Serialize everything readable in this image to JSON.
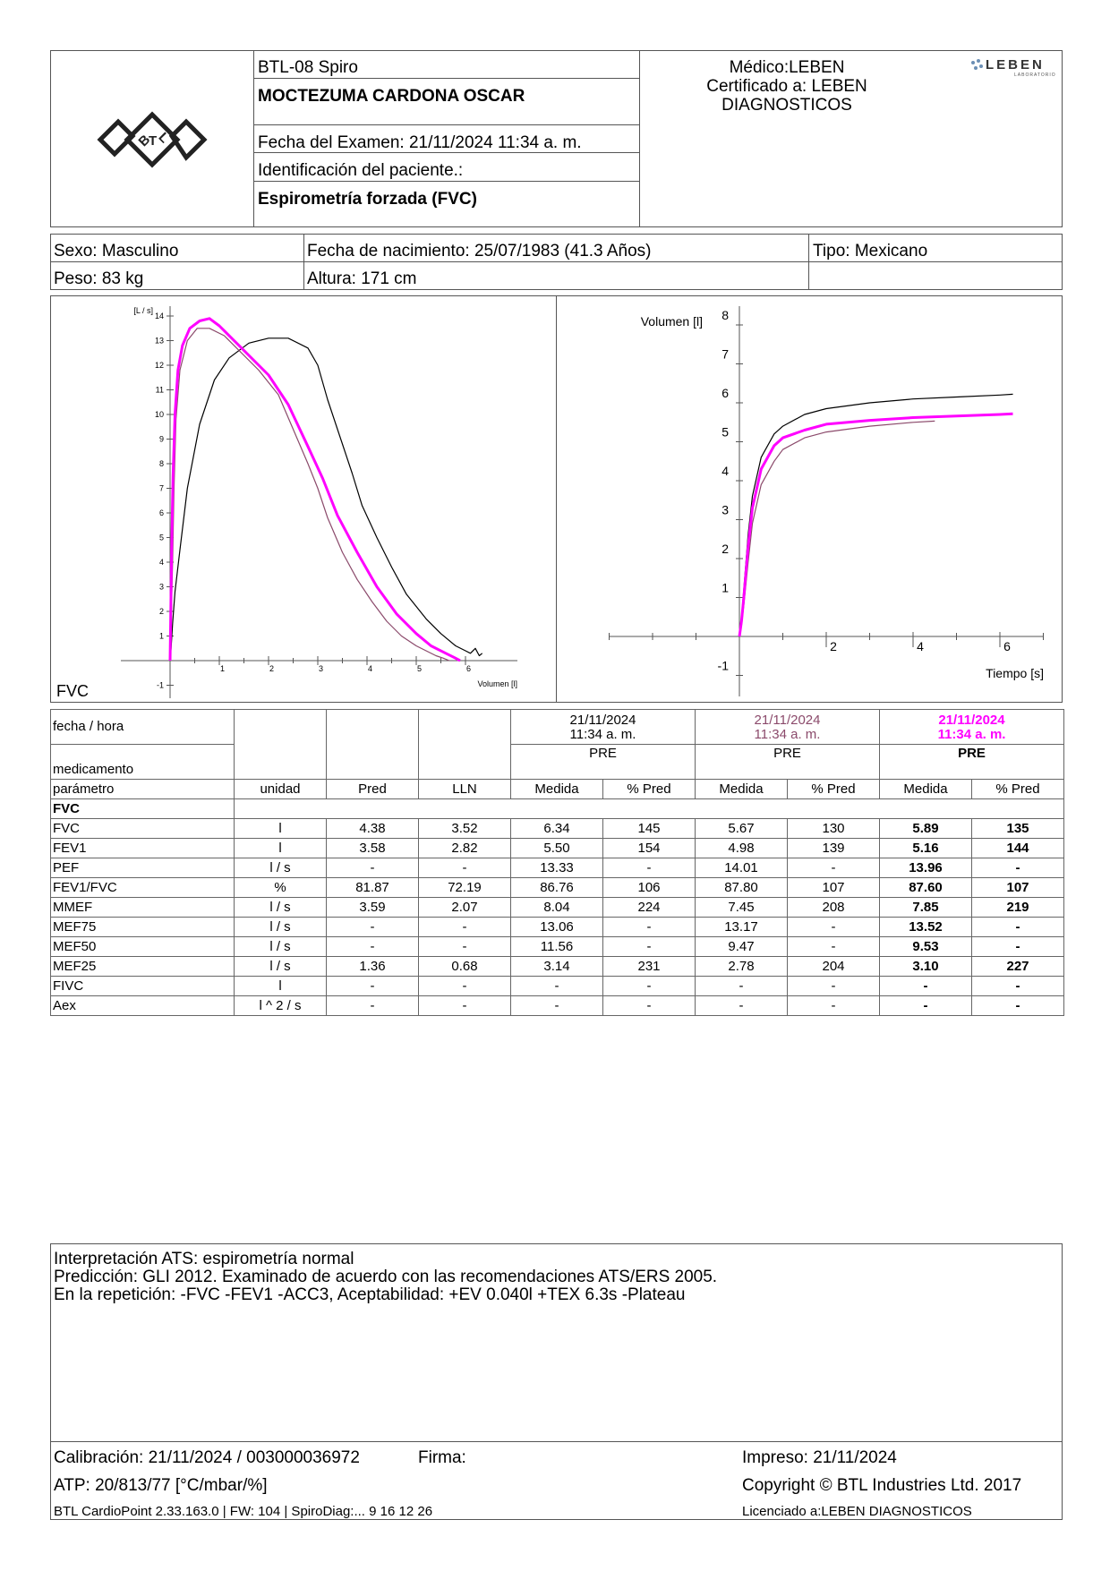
{
  "header": {
    "device": "BTL-08 Spiro",
    "patient_name": "MOCTEZUMA CARDONA OSCAR",
    "exam_date": "Fecha del Examen:  21/11/2024 11:34 a. m.",
    "patient_id": "Identificación del paciente.:",
    "test_type": "Espirometría forzada (FVC)",
    "doctor": "Médico:LEBEN",
    "certified_line1": "Certificado a: LEBEN",
    "certified_line2": "DIAGNOSTICOS",
    "lab_logo_text": "LEBEN",
    "lab_logo_sub": "LABORATORIO",
    "btl_logo_text": "BTL"
  },
  "patient": {
    "sex": "Sexo: Masculino",
    "dob": "Fecha de nacimiento: 25/07/1983 (41.3 Años)",
    "type": "Tipo: Mexicano",
    "weight": "Peso: 83 kg",
    "height": "Altura: 171 cm"
  },
  "flow_chart": {
    "label": "FVC",
    "y_unit": "[L / s]",
    "x_label": "Volumen [l]",
    "y_ticks": [
      "14",
      "13",
      "12",
      "11",
      "10",
      "9",
      "8",
      "7",
      "6",
      "5",
      "4",
      "3",
      "2",
      "1",
      "-1"
    ],
    "x_ticks": [
      "1",
      "2",
      "3",
      "4",
      "5",
      "6"
    ]
  },
  "volume_chart": {
    "y_label": "Volumen [l]",
    "x_label": "Tiempo [s]",
    "y_ticks": [
      "8",
      "7",
      "6",
      "5",
      "4",
      "3",
      "2",
      "1",
      "-1"
    ],
    "x_ticks": [
      "2",
      "4",
      "6"
    ]
  },
  "colors": {
    "trial1": "#000000",
    "trial2": "#8b4a6b",
    "best": "#ff00ff",
    "border": "#555555"
  },
  "chart_data": [
    {
      "type": "line",
      "xlabel": "Volumen [l]",
      "ylabel": "[L / s]",
      "xlim": [
        -1,
        7
      ],
      "ylim": [
        -1.5,
        14.2
      ],
      "series": [
        {
          "x": [
            0,
            0.02,
            0.05,
            0.1,
            0.2,
            0.35,
            0.6,
            0.9,
            1.2,
            1.6,
            2.0,
            2.4,
            2.8,
            3.0,
            3.2,
            3.5,
            3.7,
            3.9,
            4.2,
            4.5,
            4.8,
            5.2,
            5.5,
            5.8,
            6.0,
            6.1,
            6.2,
            6.28,
            6.34
          ],
          "values": [
            0,
            0.5,
            1.5,
            2.8,
            4.5,
            7.0,
            9.6,
            11.4,
            12.3,
            12.9,
            13.1,
            13.1,
            12.7,
            12.0,
            10.6,
            8.8,
            7.6,
            6.3,
            5.0,
            3.8,
            2.7,
            1.7,
            1.1,
            0.6,
            0.4,
            0.3,
            0.5,
            0.2,
            0.3
          ]
        },
        {
          "x": [
            0,
            0.02,
            0.05,
            0.08,
            0.12,
            0.2,
            0.35,
            0.55,
            0.8,
            1.1,
            1.4,
            1.8,
            2.2,
            2.5,
            2.8,
            3.0,
            3.2,
            3.5,
            3.8,
            4.1,
            4.4,
            4.7,
            5.0,
            5.2,
            5.4,
            5.55,
            5.67
          ],
          "values": [
            0,
            1.5,
            4.0,
            7.0,
            9.8,
            11.8,
            13.0,
            13.5,
            13.5,
            13.2,
            12.6,
            11.8,
            10.8,
            9.4,
            8.0,
            7.0,
            5.8,
            4.4,
            3.3,
            2.4,
            1.6,
            1.0,
            0.6,
            0.4,
            0.2,
            0.1,
            0.0
          ]
        },
        {
          "x": [
            0,
            0.01,
            0.03,
            0.06,
            0.1,
            0.16,
            0.25,
            0.4,
            0.6,
            0.8,
            1.0,
            1.3,
            1.6,
            2.0,
            2.4,
            2.8,
            3.1,
            3.4,
            3.8,
            4.2,
            4.6,
            5.0,
            5.3,
            5.6,
            5.8,
            5.89
          ],
          "values": [
            0,
            1.5,
            4.5,
            7.5,
            10.0,
            11.8,
            12.8,
            13.5,
            13.8,
            13.9,
            13.6,
            13.0,
            12.4,
            11.6,
            10.4,
            8.7,
            7.4,
            5.9,
            4.4,
            3.0,
            1.9,
            1.1,
            0.6,
            0.3,
            0.1,
            0.0
          ]
        }
      ]
    },
    {
      "type": "line",
      "xlabel": "Tiempo [s]",
      "ylabel": "Volumen [l]",
      "xlim": [
        -3,
        7
      ],
      "ylim": [
        -1.5,
        8.3
      ],
      "series": [
        {
          "x": [
            0,
            0.05,
            0.1,
            0.2,
            0.3,
            0.5,
            0.8,
            1.0,
            1.5,
            2.0,
            3.0,
            4.0,
            5.0,
            6.0,
            6.3
          ],
          "values": [
            0,
            0.5,
            1.2,
            2.6,
            3.6,
            4.6,
            5.2,
            5.4,
            5.7,
            5.85,
            6.0,
            6.1,
            6.15,
            6.2,
            6.22
          ]
        },
        {
          "x": [
            0,
            0.05,
            0.1,
            0.2,
            0.3,
            0.5,
            0.8,
            1.0,
            1.5,
            2.0,
            3.0,
            4.0,
            4.5
          ],
          "values": [
            0,
            0.3,
            0.8,
            1.9,
            2.9,
            3.9,
            4.5,
            4.8,
            5.1,
            5.25,
            5.4,
            5.5,
            5.53
          ]
        },
        {
          "x": [
            0,
            0.05,
            0.1,
            0.2,
            0.3,
            0.5,
            0.8,
            1.0,
            1.5,
            2.0,
            3.0,
            4.0,
            5.0,
            6.0,
            6.3
          ],
          "values": [
            0,
            0.4,
            1.0,
            2.3,
            3.3,
            4.3,
            4.9,
            5.1,
            5.3,
            5.45,
            5.55,
            5.62,
            5.66,
            5.7,
            5.72
          ]
        }
      ]
    }
  ],
  "results": {
    "label_datetime": "fecha / hora",
    "label_medication": "medicamento",
    "trials": [
      {
        "date": "21/11/2024",
        "time": "11:34 a. m.",
        "med": "PRE",
        "color": "#000000"
      },
      {
        "date": "21/11/2024",
        "time": "11:34 a. m.",
        "med": "PRE",
        "color": "#8b4a6b"
      },
      {
        "date": "21/11/2024",
        "time": "11:34 a. m.",
        "med": "PRE",
        "color": "#ff00ff"
      }
    ],
    "col_headers": [
      "parámetro",
      "unidad",
      "Pred",
      "LLN",
      "Medida",
      "% Pred",
      "Medida",
      "% Pred",
      "Medida",
      "% Pred"
    ],
    "section": "FVC",
    "rows": [
      [
        "FVC",
        "l",
        "4.38",
        "3.52",
        "6.34",
        "145",
        "5.67",
        "130",
        "5.89",
        "135"
      ],
      [
        "FEV1",
        "l",
        "3.58",
        "2.82",
        "5.50",
        "154",
        "4.98",
        "139",
        "5.16",
        "144"
      ],
      [
        "PEF",
        "l / s",
        "-",
        "-",
        "13.33",
        "-",
        "14.01",
        "-",
        "13.96",
        "-"
      ],
      [
        "FEV1/FVC",
        "%",
        "81.87",
        "72.19",
        "86.76",
        "106",
        "87.80",
        "107",
        "87.60",
        "107"
      ],
      [
        "MMEF",
        "l / s",
        "3.59",
        "2.07",
        "8.04",
        "224",
        "7.45",
        "208",
        "7.85",
        "219"
      ],
      [
        "MEF75",
        "l / s",
        "-",
        "-",
        "13.06",
        "-",
        "13.17",
        "-",
        "13.52",
        "-"
      ],
      [
        "MEF50",
        "l / s",
        "-",
        "-",
        "11.56",
        "-",
        "9.47",
        "-",
        "9.53",
        "-"
      ],
      [
        "MEF25",
        "l / s",
        "1.36",
        "0.68",
        "3.14",
        "231",
        "2.78",
        "204",
        "3.10",
        "227"
      ],
      [
        "FIVC",
        "l",
        "-",
        "-",
        "-",
        "-",
        "-",
        "-",
        "-",
        "-"
      ],
      [
        "Aex",
        "l ^ 2 / s",
        "-",
        "-",
        "-",
        "-",
        "-",
        "-",
        "-",
        "-"
      ]
    ]
  },
  "interpretation": {
    "line1": "Interpretación ATS: espirometría normal",
    "line2": "Predicción: GLI 2012. Examinado de acuerdo con las recomendaciones ATS/ERS 2005.",
    "line3": "En la repetición: -FVC -FEV1 -ACC3, Aceptabilidad: +EV 0.040l +TEX 6.3s -Plateau"
  },
  "footer": {
    "calibration": "Calibración: 21/11/2024 / 003000036972",
    "signature": "Firma:",
    "printed": "Impreso: 21/11/2024",
    "atp": "ATP: 20/813/77 [°C/mbar/%]",
    "copyright": "Copyright © BTL Industries Ltd. 2017",
    "software": "BTL CardioPoint 2.33.163.0 | FW: 104 | SpiroDiag:... 9 16 12 26",
    "licensed": "Licenciado a:LEBEN DIAGNOSTICOS"
  }
}
